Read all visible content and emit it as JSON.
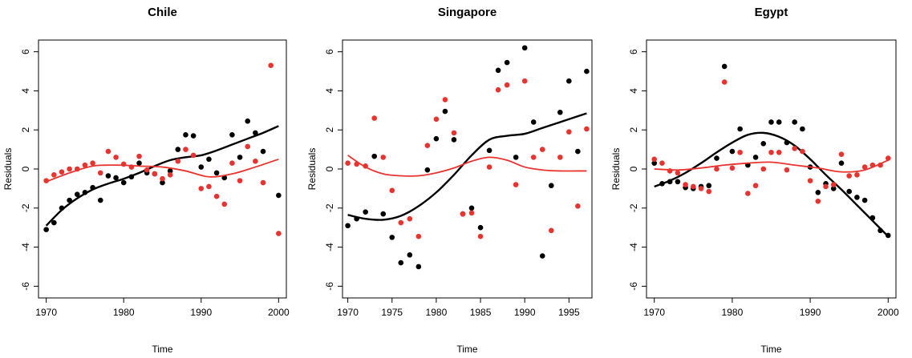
{
  "chart_data": [
    {
      "type": "scatter",
      "title": "Chile",
      "xlabel": "Time",
      "ylabel": "Residuals",
      "xlim": [
        1969,
        2001
      ],
      "ylim": [
        -6.6,
        6.6
      ],
      "xticks": [
        1970,
        1980,
        1990,
        2000
      ],
      "yticks": [
        -6,
        -4,
        -2,
        0,
        2,
        4,
        6
      ],
      "grid": false,
      "series": [
        {
          "color": "#000000",
          "x": [
            1970,
            1971,
            1972,
            1973,
            1974,
            1975,
            1976,
            1977,
            1978,
            1979,
            1980,
            1981,
            1982,
            1983,
            1984,
            1985,
            1986,
            1987,
            1988,
            1989,
            1990,
            1991,
            1992,
            1993,
            1994,
            1995,
            1996,
            1997,
            1998,
            2000
          ],
          "y": [
            -3.1,
            -2.75,
            -2.0,
            -1.6,
            -1.3,
            -1.2,
            -0.95,
            -1.6,
            -0.35,
            -0.45,
            -0.7,
            -0.4,
            0.3,
            -0.2,
            -0.25,
            -0.7,
            -0.1,
            1.0,
            1.75,
            1.7,
            0.1,
            0.5,
            -0.2,
            -0.45,
            1.75,
            0.6,
            2.45,
            1.85,
            0.9,
            -1.35
          ],
          "smooth": {
            "x": [
              1970,
              1972,
              1974,
              1976,
              1978,
              1980,
              1982,
              1984,
              1986,
              1988,
              1990,
              1992,
              1994,
              1996,
              1998,
              2000
            ],
            "y": [
              -2.9,
              -2.1,
              -1.5,
              -1.05,
              -0.75,
              -0.5,
              -0.2,
              0.15,
              0.45,
              0.6,
              0.7,
              0.95,
              1.25,
              1.55,
              1.85,
              2.2
            ]
          }
        },
        {
          "color": "#e8332f",
          "x": [
            1970,
            1971,
            1972,
            1973,
            1974,
            1975,
            1976,
            1977,
            1978,
            1979,
            1980,
            1981,
            1982,
            1983,
            1984,
            1985,
            1986,
            1987,
            1988,
            1989,
            1990,
            1991,
            1992,
            1993,
            1994,
            1995,
            1996,
            1997,
            1998,
            1999,
            2000
          ],
          "y": [
            -0.6,
            -0.3,
            -0.15,
            0.0,
            0.0,
            0.2,
            0.3,
            -0.2,
            0.9,
            0.6,
            0.25,
            0.1,
            0.65,
            -0.05,
            -0.25,
            -0.5,
            -0.3,
            0.4,
            1.0,
            0.7,
            -1.0,
            -0.9,
            -1.4,
            -1.8,
            0.3,
            -0.6,
            1.15,
            0.4,
            -0.7,
            5.3,
            -3.3
          ],
          "smooth": {
            "x": [
              1970,
              1973,
              1976,
              1979,
              1982,
              1985,
              1988,
              1991,
              1994,
              1997,
              2000
            ],
            "y": [
              -0.65,
              -0.2,
              0.15,
              0.2,
              0.15,
              0.1,
              -0.1,
              -0.4,
              -0.25,
              0.1,
              0.5
            ]
          }
        }
      ]
    },
    {
      "type": "scatter",
      "title": "Singapore",
      "xlabel": "Time",
      "ylabel": "Residuals",
      "xlim": [
        1969.4,
        1997.6
      ],
      "ylim": [
        -6.6,
        6.6
      ],
      "xticks": [
        1970,
        1975,
        1980,
        1985,
        1990,
        1995
      ],
      "yticks": [
        -6,
        -4,
        -2,
        0,
        2,
        4,
        6
      ],
      "grid": false,
      "series": [
        {
          "color": "#000000",
          "x": [
            1970,
            1971,
            1972,
            1973,
            1974,
            1975,
            1976,
            1977,
            1978,
            1979,
            1980,
            1981,
            1982,
            1983,
            1984,
            1985,
            1986,
            1987,
            1988,
            1989,
            1990,
            1991,
            1992,
            1993,
            1994,
            1995,
            1996,
            1997
          ],
          "y": [
            -2.9,
            -2.55,
            -2.2,
            0.65,
            -2.3,
            -3.5,
            -4.8,
            -4.4,
            -5.0,
            -0.05,
            1.55,
            2.95,
            1.5,
            -2.3,
            -2.0,
            -3.0,
            0.95,
            5.05,
            5.45,
            0.6,
            6.2,
            2.4,
            -4.45,
            -0.85,
            2.9,
            4.5,
            0.9,
            5.0
          ],
          "smooth": {
            "x": [
              1970,
              1972,
              1974,
              1976,
              1978,
              1980,
              1982,
              1984,
              1986,
              1988,
              1990,
              1992,
              1994,
              1996,
              1997
            ],
            "y": [
              -2.35,
              -2.55,
              -2.6,
              -2.4,
              -1.9,
              -1.2,
              -0.3,
              0.7,
              1.5,
              1.7,
              1.8,
              2.1,
              2.4,
              2.7,
              2.85
            ]
          }
        },
        {
          "color": "#e8332f",
          "x": [
            1970,
            1971,
            1972,
            1973,
            1974,
            1975,
            1976,
            1977,
            1978,
            1979,
            1980,
            1981,
            1982,
            1983,
            1984,
            1985,
            1986,
            1987,
            1988,
            1989,
            1990,
            1991,
            1992,
            1993,
            1994,
            1995,
            1996,
            1997
          ],
          "y": [
            0.3,
            0.25,
            0.15,
            2.6,
            0.6,
            -1.1,
            -2.75,
            -2.55,
            -3.45,
            1.2,
            2.55,
            3.55,
            1.85,
            -2.3,
            -2.25,
            -3.45,
            0.1,
            4.05,
            4.3,
            -0.8,
            4.5,
            0.6,
            1.0,
            -3.15,
            0.6,
            1.9,
            -1.9,
            2.05
          ],
          "smooth": {
            "x": [
              1970,
              1972,
              1974,
              1976,
              1978,
              1980,
              1982,
              1984,
              1986,
              1988,
              1990,
              1992,
              1994,
              1996,
              1997
            ],
            "y": [
              0.7,
              0.1,
              -0.25,
              -0.35,
              -0.35,
              -0.2,
              0.05,
              0.4,
              0.6,
              0.45,
              0.1,
              -0.05,
              -0.1,
              -0.1,
              -0.1
            ]
          }
        }
      ]
    },
    {
      "type": "scatter",
      "title": "Egypt",
      "xlabel": "Time",
      "ylabel": "Residuals",
      "xlim": [
        1969,
        2001
      ],
      "ylim": [
        -6.6,
        6.6
      ],
      "xticks": [
        1970,
        1980,
        1990,
        2000
      ],
      "yticks": [
        -6,
        -4,
        -2,
        0,
        2,
        4,
        6
      ],
      "grid": false,
      "series": [
        {
          "color": "#000000",
          "x": [
            1970,
            1971,
            1972,
            1973,
            1974,
            1975,
            1976,
            1977,
            1978,
            1979,
            1980,
            1981,
            1982,
            1983,
            1984,
            1985,
            1986,
            1987,
            1988,
            1989,
            1990,
            1991,
            1992,
            1993,
            1994,
            1995,
            1996,
            1997,
            1998,
            1999,
            2000
          ],
          "y": [
            0.3,
            -0.75,
            -0.65,
            -0.65,
            -0.95,
            -1.0,
            -0.9,
            -0.85,
            0.55,
            5.25,
            0.9,
            2.05,
            0.2,
            0.6,
            1.3,
            2.4,
            2.4,
            1.35,
            2.4,
            2.05,
            0.1,
            -1.2,
            -0.75,
            -1.0,
            0.3,
            -1.15,
            -1.45,
            -1.6,
            -2.5,
            -3.15,
            -3.4
          ],
          "smooth": {
            "x": [
              1970,
              1972,
              1974,
              1976,
              1978,
              1980,
              1982,
              1984,
              1986,
              1988,
              1990,
              1992,
              1994,
              1996,
              1998,
              2000
            ],
            "y": [
              -0.9,
              -0.6,
              -0.2,
              0.3,
              0.85,
              1.35,
              1.75,
              1.85,
              1.65,
              1.2,
              0.5,
              -0.3,
              -1.05,
              -1.85,
              -2.65,
              -3.45
            ]
          }
        },
        {
          "color": "#e8332f",
          "x": [
            1970,
            1971,
            1972,
            1973,
            1974,
            1975,
            1976,
            1977,
            1978,
            1979,
            1980,
            1981,
            1982,
            1983,
            1984,
            1985,
            1986,
            1987,
            1988,
            1989,
            1990,
            1991,
            1992,
            1993,
            1994,
            1995,
            1996,
            1997,
            1998,
            1999,
            2000
          ],
          "y": [
            0.5,
            0.3,
            -0.1,
            -0.2,
            -0.8,
            -0.9,
            -1.0,
            -1.15,
            0.0,
            4.45,
            0.05,
            0.85,
            -1.25,
            -0.85,
            0.0,
            0.85,
            0.85,
            -0.05,
            1.05,
            0.9,
            -0.6,
            -1.65,
            -0.9,
            -0.8,
            0.75,
            -0.35,
            -0.3,
            0.1,
            0.2,
            0.2,
            0.55
          ],
          "smooth": {
            "x": [
              1970,
              1973,
              1976,
              1979,
              1982,
              1985,
              1988,
              1991,
              1994,
              1997,
              2000
            ],
            "y": [
              0.0,
              -0.05,
              0.05,
              0.2,
              0.3,
              0.35,
              0.2,
              0.05,
              -0.15,
              -0.05,
              0.45
            ]
          }
        }
      ]
    }
  ]
}
